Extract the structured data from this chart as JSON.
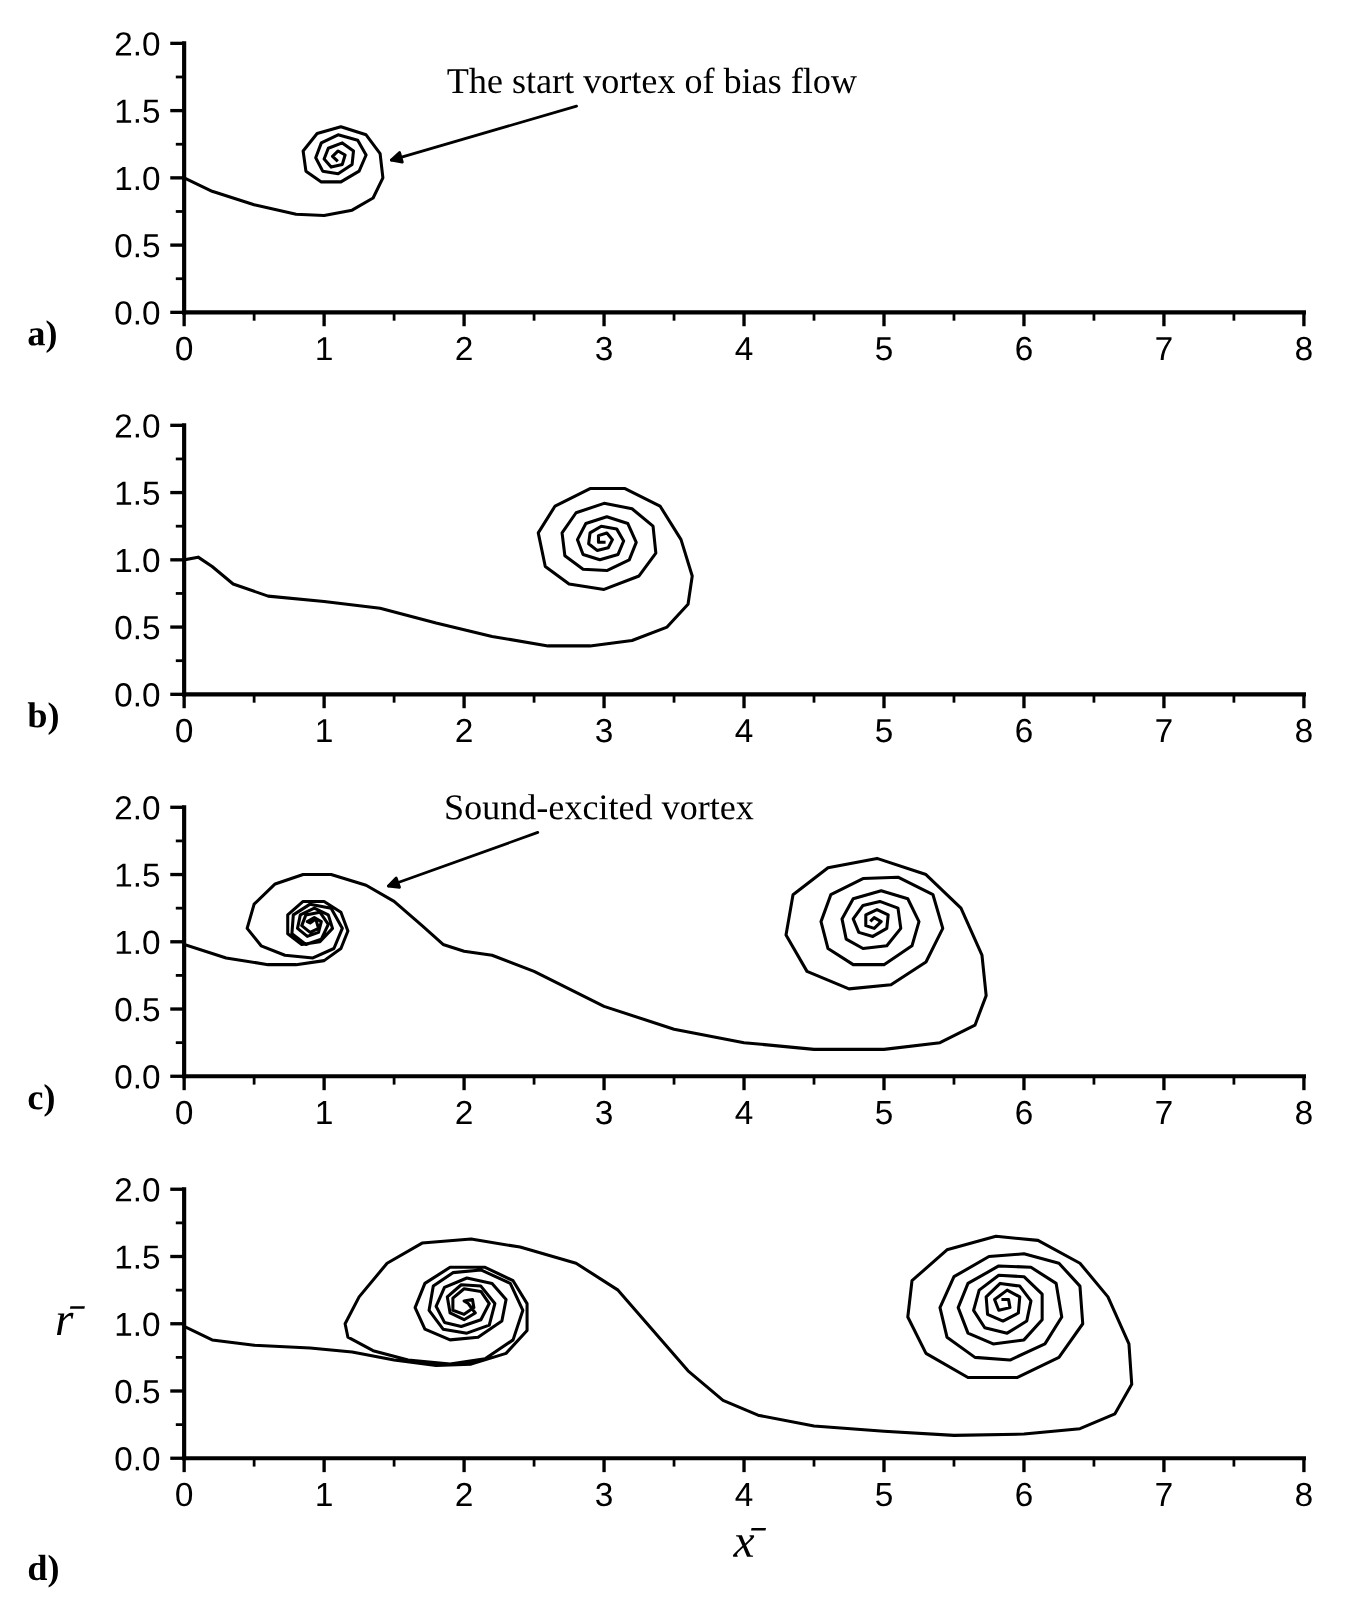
{
  "chart_data": [
    {
      "type": "line",
      "annotations": [
        "a)",
        {
          "text": "The start vortex of bias flow",
          "x": 1.44,
          "y": 1.12
        }
      ],
      "xlim": [
        0,
        8
      ],
      "xticks": [
        0,
        1,
        2,
        3,
        4,
        5,
        6,
        7,
        8
      ],
      "ylim": [
        0,
        2
      ],
      "yticks": [
        {
          "value": 0,
          "label": "0.0"
        },
        {
          "value": 0.5,
          "label": "0.5"
        },
        {
          "value": 1,
          "label": "1.0"
        },
        {
          "value": 1.5,
          "label": "1.5"
        },
        {
          "value": 2,
          "label": "2.0"
        }
      ],
      "grid": false,
      "series": [
        {
          "color": "#000000",
          "x": [
            0,
            0.2,
            0.5,
            0.8,
            1.0,
            1.2,
            1.35,
            1.42,
            1.4,
            1.3,
            1.12,
            0.95,
            0.85,
            0.87,
            0.98,
            1.12,
            1.25,
            1.3,
            1.24,
            1.1,
            0.98,
            0.94,
            0.99,
            1.1,
            1.2,
            1.21,
            1.13,
            1.03,
            1.0,
            1.05,
            1.13,
            1.15,
            1.1,
            1.06,
            1.09
          ],
          "values": [
            1.0,
            0.9,
            0.8,
            0.73,
            0.72,
            0.76,
            0.85,
            1.0,
            1.18,
            1.32,
            1.38,
            1.33,
            1.2,
            1.05,
            0.97,
            0.97,
            1.05,
            1.17,
            1.28,
            1.32,
            1.26,
            1.15,
            1.05,
            1.03,
            1.1,
            1.2,
            1.26,
            1.22,
            1.14,
            1.08,
            1.1,
            1.17,
            1.2,
            1.16,
            1.13
          ]
        }
      ]
    },
    {
      "type": "line",
      "annotations": [
        "b)"
      ],
      "xlim": [
        0,
        8
      ],
      "xticks": [
        0,
        1,
        2,
        3,
        4,
        5,
        6,
        7,
        8
      ],
      "ylim": [
        0,
        2
      ],
      "yticks": [
        {
          "value": 0,
          "label": "0.0"
        },
        {
          "value": 0.5,
          "label": "0.5"
        },
        {
          "value": 1,
          "label": "1.0"
        },
        {
          "value": 1.5,
          "label": "1.5"
        },
        {
          "value": 2,
          "label": "2.0"
        }
      ],
      "grid": false,
      "series": [
        {
          "color": "#000000",
          "x": [
            0,
            0.1,
            0.2,
            0.35,
            0.6,
            1.0,
            1.4,
            1.8,
            2.2,
            2.6,
            2.9,
            3.2,
            3.45,
            3.6,
            3.63,
            3.55,
            3.4,
            3.15,
            2.9,
            2.65,
            2.53,
            2.58,
            2.75,
            3.0,
            3.25,
            3.37,
            3.35,
            3.2,
            3.0,
            2.8,
            2.7,
            2.72,
            2.85,
            3.02,
            3.18,
            3.23,
            3.17,
            3.02,
            2.87,
            2.81,
            2.85,
            2.97,
            3.1,
            3.14,
            3.09,
            2.98,
            2.9,
            2.89,
            2.95,
            3.03,
            3.06,
            3.02,
            2.96,
            2.96,
            3.0
          ],
          "values": [
            1.0,
            1.02,
            0.95,
            0.82,
            0.73,
            0.69,
            0.64,
            0.53,
            0.43,
            0.36,
            0.36,
            0.4,
            0.5,
            0.67,
            0.88,
            1.15,
            1.4,
            1.53,
            1.53,
            1.4,
            1.2,
            0.95,
            0.82,
            0.78,
            0.88,
            1.05,
            1.25,
            1.38,
            1.42,
            1.35,
            1.2,
            1.03,
            0.93,
            0.92,
            1.0,
            1.13,
            1.27,
            1.32,
            1.27,
            1.15,
            1.04,
            1.0,
            1.04,
            1.14,
            1.23,
            1.25,
            1.2,
            1.12,
            1.07,
            1.09,
            1.15,
            1.2,
            1.18,
            1.13,
            1.13
          ]
        }
      ]
    },
    {
      "type": "line",
      "annotations": [
        "c)",
        {
          "text": "Sound-excited vortex",
          "x": 1.42,
          "y": 1.4
        }
      ],
      "xlim": [
        0,
        8
      ],
      "xticks": [
        0,
        1,
        2,
        3,
        4,
        5,
        6,
        7,
        8
      ],
      "ylim": [
        0,
        2
      ],
      "yticks": [
        {
          "value": 0,
          "label": "0.0"
        },
        {
          "value": 0.5,
          "label": "0.5"
        },
        {
          "value": 1,
          "label": "1.0"
        },
        {
          "value": 1.5,
          "label": "1.5"
        },
        {
          "value": 2,
          "label": "2.0"
        }
      ],
      "grid": false,
      "series": [
        {
          "color": "#000000",
          "x": [
            0,
            0.3,
            0.6,
            0.8,
            1.0,
            1.12,
            1.17,
            1.12,
            1.0,
            0.85,
            0.74,
            0.74,
            0.84,
            0.97,
            1.06,
            1.03,
            0.93,
            0.83,
            0.81,
            0.88,
            0.96,
            0.98,
            0.93,
            0.88,
            0.9,
            0.94,
            0.96,
            0.9,
            0.84,
            0.87,
            0.97,
            1.03,
            0.98,
            0.87,
            0.77,
            0.78,
            0.9,
            1.05,
            1.13,
            1.07,
            0.92,
            0.72,
            0.55,
            0.45,
            0.5,
            0.65,
            0.85,
            1.05,
            1.3,
            1.5,
            1.7,
            1.85,
            2.0,
            2.2,
            2.5,
            3.0,
            3.5,
            4.0,
            4.5,
            5.0,
            5.4,
            5.65,
            5.73,
            5.7,
            5.55,
            5.3,
            4.95,
            4.6,
            4.35,
            4.3,
            4.45,
            4.75,
            5.05,
            5.3,
            5.42,
            5.35,
            5.1,
            4.85,
            4.62,
            4.55,
            4.6,
            4.78,
            5.0,
            5.2,
            5.25,
            5.17,
            4.98,
            4.78,
            4.7,
            4.73,
            4.85,
            5.02,
            5.12,
            5.1,
            4.97,
            4.85,
            4.78,
            4.82,
            4.92,
            5.02,
            5.03,
            4.95,
            4.87,
            4.87,
            4.93,
            4.98,
            4.93,
            4.91
          ],
          "values": [
            0.98,
            0.88,
            0.83,
            0.83,
            0.86,
            0.95,
            1.08,
            1.22,
            1.3,
            1.3,
            1.2,
            1.06,
            0.98,
            1.0,
            1.1,
            1.2,
            1.25,
            1.2,
            1.1,
            1.04,
            1.07,
            1.15,
            1.18,
            1.15,
            1.14,
            1.17,
            1.1,
            1.07,
            1.12,
            1.2,
            1.22,
            1.13,
            1.02,
            0.98,
            1.06,
            1.2,
            1.28,
            1.25,
            1.1,
            0.95,
            0.88,
            0.9,
            0.97,
            1.1,
            1.28,
            1.43,
            1.5,
            1.5,
            1.42,
            1.3,
            1.12,
            0.98,
            0.93,
            0.9,
            0.78,
            0.52,
            0.35,
            0.25,
            0.2,
            0.2,
            0.25,
            0.38,
            0.6,
            0.9,
            1.25,
            1.5,
            1.62,
            1.55,
            1.35,
            1.05,
            0.78,
            0.65,
            0.68,
            0.85,
            1.1,
            1.35,
            1.48,
            1.47,
            1.35,
            1.15,
            0.95,
            0.83,
            0.83,
            0.97,
            1.15,
            1.32,
            1.38,
            1.32,
            1.17,
            1.02,
            0.95,
            0.97,
            1.1,
            1.25,
            1.3,
            1.27,
            1.17,
            1.07,
            1.04,
            1.1,
            1.2,
            1.24,
            1.2,
            1.12,
            1.1,
            1.15,
            1.18,
            1.16
          ]
        }
      ]
    },
    {
      "type": "line",
      "annotations": [
        "d)"
      ],
      "xlabel": "x̄",
      "ylabel": "r̄",
      "xlim": [
        0,
        8
      ],
      "xticks": [
        0,
        1,
        2,
        3,
        4,
        5,
        6,
        7,
        8
      ],
      "ylim": [
        0,
        2
      ],
      "yticks": [
        {
          "value": 0,
          "label": "0.0"
        },
        {
          "value": 0.5,
          "label": "0.5"
        },
        {
          "value": 1,
          "label": "1.0"
        },
        {
          "value": 1.5,
          "label": "1.5"
        },
        {
          "value": 2,
          "label": "2.0"
        }
      ],
      "grid": false,
      "series": [
        {
          "color": "#000000",
          "x": [
            0,
            0.2,
            0.5,
            0.9,
            1.2,
            1.5,
            1.8,
            2.05,
            2.3,
            2.45,
            2.45,
            2.35,
            2.15,
            1.9,
            1.72,
            1.65,
            1.72,
            1.9,
            2.1,
            2.27,
            2.3,
            2.2,
            2.02,
            1.86,
            1.8,
            1.86,
            1.98,
            2.12,
            2.18,
            2.12,
            2.0,
            1.92,
            1.92,
            2.0,
            2.07,
            2.06,
            2.0,
            2.03,
            2.08,
            2.0,
            1.9,
            1.88,
            1.98,
            2.12,
            2.22,
            2.18,
            2.02,
            1.85,
            1.75,
            1.78,
            1.92,
            2.12,
            2.33,
            2.42,
            2.35,
            2.15,
            1.9,
            1.6,
            1.35,
            1.17,
            1.15,
            1.25,
            1.45,
            1.7,
            2.05,
            2.4,
            2.8,
            3.1,
            3.35,
            3.6,
            3.85,
            4.1,
            4.5,
            5.0,
            5.5,
            6.0,
            6.4,
            6.65,
            6.77,
            6.75,
            6.6,
            6.4,
            6.1,
            5.8,
            5.45,
            5.2,
            5.17,
            5.3,
            5.6,
            5.95,
            6.25,
            6.42,
            6.4,
            6.25,
            6.0,
            5.75,
            5.5,
            5.4,
            5.45,
            5.65,
            5.9,
            6.15,
            6.27,
            6.23,
            6.05,
            5.82,
            5.6,
            5.53,
            5.6,
            5.78,
            6.0,
            6.13,
            6.13,
            6.0,
            5.82,
            5.68,
            5.64,
            5.72,
            5.88,
            6.02,
            6.05,
            5.97,
            5.83,
            5.73,
            5.74,
            5.85,
            5.96,
            5.97,
            5.88,
            5.79,
            5.82,
            5.9,
            5.89,
            5.85
          ],
          "values": [
            0.98,
            0.88,
            0.84,
            0.82,
            0.79,
            0.73,
            0.69,
            0.7,
            0.78,
            0.95,
            1.15,
            1.32,
            1.42,
            1.42,
            1.3,
            1.12,
            0.96,
            0.88,
            0.9,
            1.02,
            1.18,
            1.3,
            1.34,
            1.27,
            1.13,
            1.01,
            0.98,
            1.03,
            1.15,
            1.24,
            1.26,
            1.19,
            1.1,
            1.07,
            1.12,
            1.18,
            1.17,
            1.15,
            1.08,
            1.03,
            1.08,
            1.2,
            1.29,
            1.28,
            1.15,
            0.99,
            0.93,
            0.96,
            1.1,
            1.28,
            1.38,
            1.4,
            1.3,
            1.1,
            0.88,
            0.74,
            0.7,
            0.73,
            0.8,
            0.9,
            1.0,
            1.2,
            1.45,
            1.6,
            1.63,
            1.57,
            1.45,
            1.25,
            0.95,
            0.65,
            0.43,
            0.32,
            0.24,
            0.2,
            0.17,
            0.18,
            0.22,
            0.33,
            0.55,
            0.85,
            1.2,
            1.45,
            1.62,
            1.65,
            1.55,
            1.32,
            1.05,
            0.78,
            0.6,
            0.6,
            0.75,
            1.0,
            1.28,
            1.45,
            1.52,
            1.5,
            1.35,
            1.12,
            0.9,
            0.75,
            0.73,
            0.85,
            1.05,
            1.3,
            1.42,
            1.43,
            1.3,
            1.12,
            0.93,
            0.85,
            0.88,
            1.03,
            1.22,
            1.35,
            1.36,
            1.25,
            1.1,
            0.97,
            0.93,
            1.02,
            1.17,
            1.28,
            1.3,
            1.2,
            1.07,
            1.02,
            1.08,
            1.2,
            1.25,
            1.18,
            1.1,
            1.12,
            1.18,
            1.18
          ]
        }
      ]
    }
  ]
}
